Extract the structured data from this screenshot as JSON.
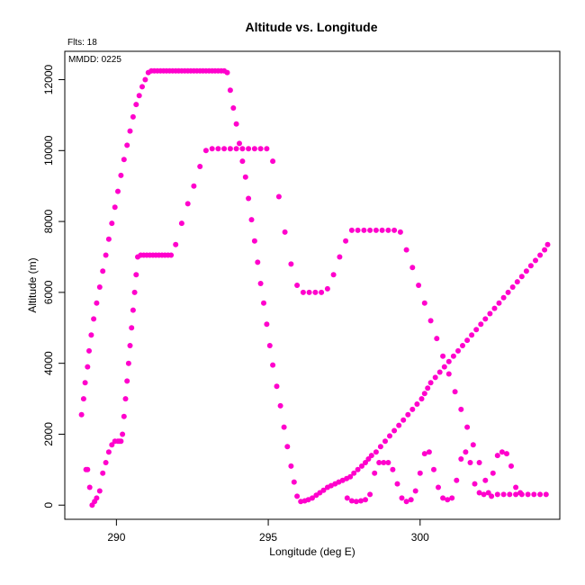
{
  "chart_data": {
    "type": "scatter",
    "title": "Altitude vs. Longitude",
    "subtitle": "Flts: 18",
    "annotation": "MMDD: 0225",
    "xlabel": "Longitude (deg E)",
    "ylabel": "Altitude (m)",
    "xlim": [
      288.3,
      304.6
    ],
    "ylim": [
      -400,
      12800
    ],
    "xticks": [
      290,
      295,
      300
    ],
    "yticks": [
      0,
      2000,
      4000,
      6000,
      8000,
      10000,
      12000
    ],
    "grid": false,
    "point_color": "#ff00cc",
    "series": [
      {
        "x": [
          288.85,
          288.92,
          288.97,
          289.05,
          289.1,
          289.17,
          289.25,
          289.35,
          289.45,
          289.55,
          289.65,
          289.75,
          289.85,
          289.95,
          290.05,
          290.15,
          290.25,
          290.35,
          290.45,
          290.55,
          290.65,
          290.75,
          290.85,
          290.95,
          291.05,
          291.15,
          291.25,
          291.35,
          291.45,
          291.55,
          291.65,
          291.75,
          291.85,
          291.95,
          292.05,
          292.15,
          292.25,
          292.35,
          292.45,
          292.55,
          292.65,
          292.75,
          292.85,
          292.95,
          293.05,
          293.15,
          293.25,
          293.35,
          293.45,
          293.55,
          293.65,
          293.75,
          293.85,
          293.95,
          294.05,
          294.15,
          294.25,
          294.35,
          294.45,
          294.55,
          294.65,
          294.75,
          294.85,
          294.95,
          295.05,
          295.15,
          295.28,
          295.4,
          295.52,
          295.63,
          295.75,
          295.85,
          295.95,
          296.07,
          296.2,
          296.32,
          296.45,
          296.58,
          296.7,
          296.82,
          296.95,
          297.07,
          297.2,
          297.32,
          297.45,
          297.58,
          297.7,
          297.82,
          297.95,
          298.08,
          298.2,
          298.3,
          298.4,
          298.55,
          298.7,
          298.85,
          299.0,
          299.15,
          299.3,
          299.45,
          299.6,
          299.75,
          299.9,
          300.05,
          300.15,
          300.25,
          300.35,
          300.5,
          300.65,
          300.8,
          300.95,
          301.1,
          301.25,
          301.4,
          301.55,
          301.7,
          301.85,
          302.0,
          302.15,
          302.3,
          302.45,
          302.6,
          302.75,
          302.9,
          303.05,
          303.2,
          303.35,
          303.5,
          303.65,
          303.8,
          303.95,
          304.1,
          304.2
        ],
        "y": [
          2550,
          3000,
          3450,
          3900,
          4350,
          4800,
          5250,
          5700,
          6150,
          6600,
          7050,
          7500,
          7950,
          8400,
          8850,
          9300,
          9750,
          10150,
          10550,
          10950,
          11300,
          11550,
          11800,
          12000,
          12200,
          12250,
          12250,
          12250,
          12250,
          12250,
          12250,
          12250,
          12250,
          12250,
          12250,
          12250,
          12250,
          12250,
          12250,
          12250,
          12250,
          12250,
          12250,
          12250,
          12250,
          12250,
          12250,
          12250,
          12250,
          12250,
          12200,
          11700,
          11200,
          10750,
          10200,
          9700,
          9250,
          8650,
          8050,
          7450,
          6850,
          6250,
          5700,
          5100,
          4500,
          3950,
          3350,
          2800,
          2200,
          1650,
          1100,
          650,
          250,
          100,
          120,
          150,
          200,
          280,
          350,
          420,
          500,
          550,
          600,
          650,
          700,
          750,
          800,
          900,
          1000,
          1100,
          1200,
          1300,
          1400,
          1500,
          1650,
          1800,
          1950,
          2100,
          2250,
          2400,
          2550,
          2700,
          2850,
          3000,
          3150,
          3300,
          3450,
          3600,
          3750,
          3900,
          4050,
          4200,
          4350,
          4500,
          4650,
          4800,
          4950,
          5100,
          5250,
          5400,
          5550,
          5700,
          5850,
          6000,
          6150,
          6300,
          6450,
          6600,
          6750,
          6900,
          7050,
          7200,
          7350
        ]
      },
      {
        "x": [
          289.0,
          289.05,
          289.12,
          289.2,
          289.28,
          289.35,
          289.45,
          289.55,
          289.65,
          289.75,
          289.85,
          289.95,
          290.05,
          290.1,
          290.15,
          290.2,
          290.25,
          290.3,
          290.35,
          290.4,
          290.45,
          290.5,
          290.55,
          290.6,
          290.65,
          290.7,
          290.8,
          290.9,
          291.0,
          291.1,
          291.2,
          291.3,
          291.4,
          291.5,
          291.6,
          291.7,
          291.8,
          291.95,
          292.15,
          292.35,
          292.55,
          292.75,
          292.95,
          293.15,
          293.35,
          293.55,
          293.75,
          293.95,
          294.15,
          294.35,
          294.55,
          294.75,
          294.95,
          295.15,
          295.35,
          295.55,
          295.75,
          295.95,
          296.15,
          296.35,
          296.55,
          296.75,
          296.95,
          297.15,
          297.35,
          297.55,
          297.75,
          297.95,
          298.15,
          298.35,
          298.55,
          298.75,
          298.95,
          299.15,
          299.35,
          299.55,
          299.75,
          299.95,
          300.15,
          300.35,
          300.55,
          300.75,
          300.95,
          301.15,
          301.35,
          301.55,
          301.75,
          301.95,
          302.15,
          302.35,
          302.55,
          302.75,
          302.95,
          303.15,
          303.35,
          303.55,
          303.75,
          303.95,
          304.15
        ],
        "y": [
          1000,
          1000,
          500,
          0,
          100,
          200,
          400,
          900,
          1200,
          1500,
          1700,
          1800,
          1800,
          1800,
          1800,
          2000,
          2500,
          3000,
          3500,
          4000,
          4500,
          5000,
          5500,
          6000,
          6500,
          7000,
          7050,
          7050,
          7050,
          7050,
          7050,
          7050,
          7050,
          7050,
          7050,
          7050,
          7050,
          7350,
          7950,
          8500,
          9000,
          9550,
          10000,
          10050,
          10050,
          10050,
          10050,
          10050,
          10050,
          10050,
          10050,
          10050,
          10050,
          9700,
          8700,
          7700,
          6800,
          6200,
          6000,
          6000,
          6000,
          6000,
          6100,
          6500,
          7000,
          7450,
          7750,
          7750,
          7750,
          7750,
          7750,
          7750,
          7750,
          7750,
          7700,
          7200,
          6700,
          6200,
          5700,
          5200,
          4700,
          4200,
          3700,
          3200,
          2700,
          2200,
          1700,
          1200,
          700,
          250,
          300,
          300,
          300,
          300,
          300,
          300,
          300,
          300,
          300
        ]
      },
      {
        "x": [
          297.6,
          297.75,
          297.9,
          298.05,
          298.2,
          298.35,
          298.5,
          298.65,
          298.8,
          298.95,
          299.1,
          299.25,
          299.4,
          299.55,
          299.7,
          299.85,
          300.0,
          300.15,
          300.3,
          300.45,
          300.6,
          300.75,
          300.9,
          301.05,
          301.2,
          301.35,
          301.5,
          301.65,
          301.8,
          301.95,
          302.1,
          302.25,
          302.4,
          302.55,
          302.7,
          302.85,
          303.0,
          303.15,
          303.3
        ],
        "y": [
          200,
          120,
          100,
          120,
          150,
          300,
          900,
          1200,
          1200,
          1200,
          1000,
          600,
          200,
          100,
          150,
          400,
          900,
          1450,
          1500,
          1000,
          500,
          200,
          150,
          200,
          700,
          1300,
          1500,
          1200,
          600,
          350,
          300,
          350,
          900,
          1400,
          1500,
          1450,
          1100,
          500,
          350
        ]
      }
    ]
  }
}
